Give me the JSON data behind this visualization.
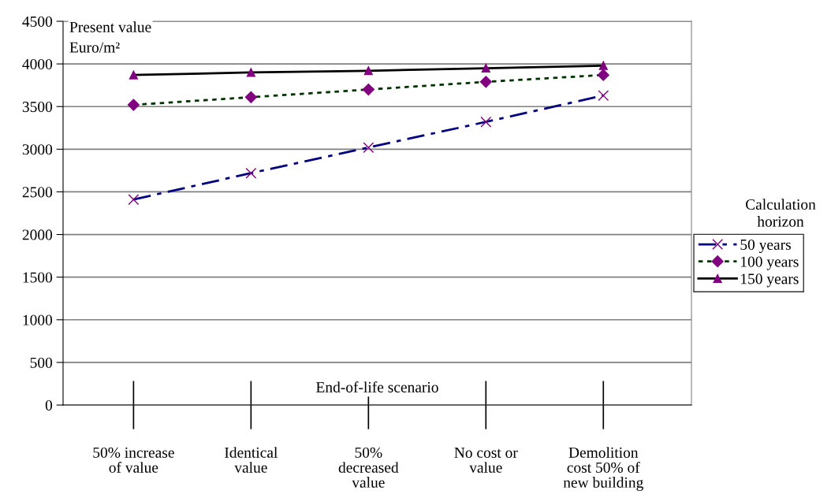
{
  "chart_data": {
    "type": "line",
    "ylabel": "Present value\nEuro/m²",
    "xlabel": "End-of-life scenario",
    "legend_title": "Calculation\nhorizon",
    "categories": [
      "50% increase\nof value",
      "Identical\nvalue",
      "50%\ndecreased\nvalue",
      "No cost or\nvalue",
      "Demolition\ncost 50% of\nnew building"
    ],
    "series": [
      {
        "name": "50 years",
        "color": "#000080",
        "marker": "cross",
        "line_style": "dashed",
        "values": [
          2410,
          2720,
          3020,
          3320,
          3630
        ]
      },
      {
        "name": "100 years",
        "color": "#003300",
        "marker": "diamond",
        "line_style": "dotted",
        "values": [
          3520,
          3610,
          3700,
          3790,
          3870
        ]
      },
      {
        "name": "150 years",
        "color": "#000000",
        "marker": "triangle",
        "line_style": "solid",
        "values": [
          3870,
          3900,
          3920,
          3950,
          3980
        ]
      }
    ],
    "ylim": [
      0,
      4500
    ],
    "yticks": [
      0,
      500,
      1000,
      1500,
      2000,
      2500,
      3000,
      3500,
      4000,
      4500
    ],
    "grid": "y",
    "legend": "right"
  }
}
